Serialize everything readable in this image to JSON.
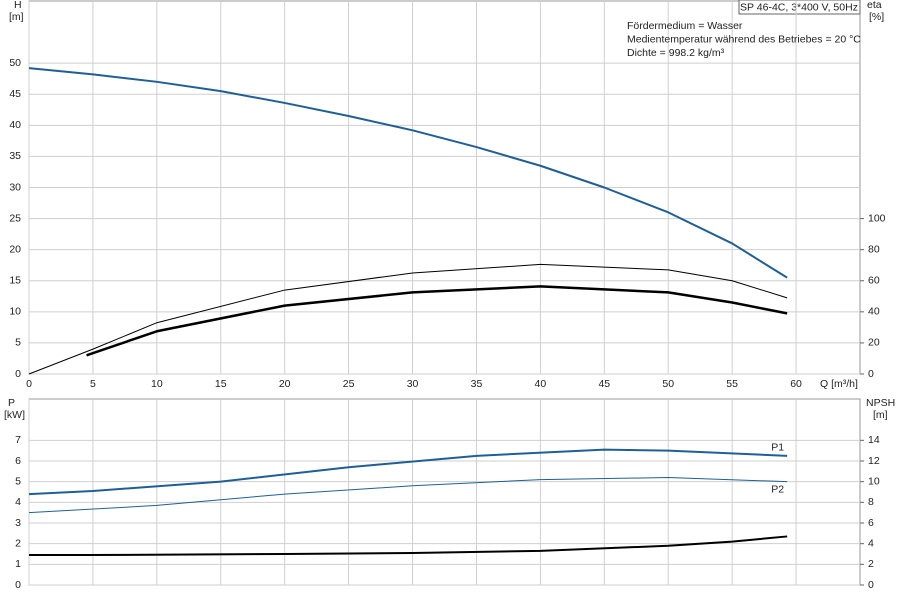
{
  "chart_data": [
    {
      "type": "line",
      "title": "SP 46-4C, 3*400 V, 50Hz",
      "annotations": [
        "Fördermedium = Wasser",
        "Medientemperatur während des Betriebes = 20 °C",
        "Dichte = 998.2 kg/m³"
      ],
      "ylabel": [
        "H",
        "[m]"
      ],
      "y2label": [
        "eta",
        "[%]"
      ],
      "xlabel": "Q [m³/h]",
      "xlim": [
        0,
        65
      ],
      "xticks": [
        0,
        5,
        10,
        15,
        20,
        25,
        30,
        35,
        40,
        45,
        50,
        55,
        60
      ],
      "show_xtick_labels": true,
      "ylim": [
        0,
        60
      ],
      "yticks": [
        0,
        5,
        10,
        15,
        20,
        25,
        30,
        35,
        40,
        45,
        50
      ],
      "y2lim": [
        0,
        240
      ],
      "y2ticks": [
        0,
        20,
        40,
        60,
        80,
        100
      ],
      "grid": true,
      "series": [
        {
          "color": "#1f5f96",
          "width": 2,
          "axis": "y",
          "x": [
            0,
            5,
            10,
            15,
            20,
            25,
            30,
            35,
            40,
            45,
            50,
            55,
            59.3
          ],
          "values": [
            49.2,
            48.2,
            47,
            45.5,
            43.6,
            41.5,
            39.2,
            36.5,
            33.5,
            30,
            26,
            21,
            15.5
          ]
        },
        {
          "color": "#000000",
          "width": 1,
          "axis": "y2",
          "x": [
            0,
            5,
            10,
            20,
            30,
            40,
            50,
            55,
            59.3
          ],
          "values": [
            0,
            16,
            33,
            54,
            65,
            70.5,
            67,
            60,
            49
          ]
        },
        {
          "color": "#000000",
          "width": 2.5,
          "axis": "y2",
          "x": [
            4.5,
            10,
            20,
            30,
            40,
            50,
            55,
            59.3
          ],
          "values": [
            12,
            27.5,
            44,
            52.5,
            56.4,
            52.5,
            46,
            39
          ]
        }
      ]
    },
    {
      "type": "line",
      "ylabel": [
        "P",
        "[kW]"
      ],
      "y2label": [
        "NPSH",
        "[m]"
      ],
      "xlim": [
        0,
        65
      ],
      "xticks": [
        0,
        5,
        10,
        15,
        20,
        25,
        30,
        35,
        40,
        45,
        50,
        55,
        60
      ],
      "show_xtick_labels": false,
      "ylim": [
        0,
        9
      ],
      "yticks": [
        0,
        1,
        2,
        3,
        4,
        5,
        6,
        7
      ],
      "y2lim": [
        0,
        18
      ],
      "y2ticks": [
        0,
        2,
        4,
        6,
        8,
        10,
        12,
        14
      ],
      "grid": true,
      "series": [
        {
          "name": "P1",
          "color": "#1f5f96",
          "width": 2,
          "axis": "y",
          "x": [
            0,
            5,
            15,
            25,
            35,
            45,
            50,
            59.3
          ],
          "values": [
            4.4,
            4.55,
            5.0,
            5.7,
            6.25,
            6.55,
            6.5,
            6.25
          ]
        },
        {
          "name": "P2",
          "color": "#1f5f96",
          "width": 1,
          "axis": "y",
          "x": [
            0,
            10,
            20,
            30,
            40,
            50,
            59.3
          ],
          "values": [
            3.5,
            3.85,
            4.4,
            4.8,
            5.1,
            5.2,
            5.0
          ]
        },
        {
          "color": "#000000",
          "width": 2,
          "axis": "y2",
          "x": [
            0,
            4.5,
            20,
            30,
            40,
            50,
            55,
            59.3
          ],
          "values": [
            2.9,
            2.9,
            3.0,
            3.1,
            3.3,
            3.8,
            4.2,
            4.7
          ]
        }
      ]
    }
  ]
}
